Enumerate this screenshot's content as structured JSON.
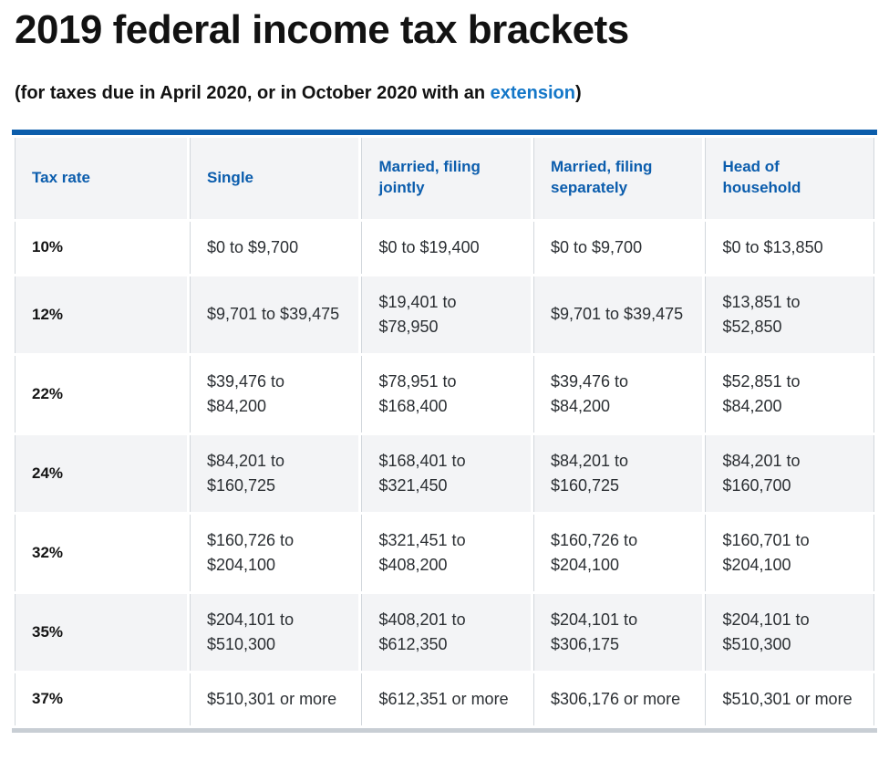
{
  "page": {
    "title": "2019 federal income tax brackets",
    "subtitle": {
      "prefix": "(for taxes due in April 2020, or in October 2020 with an ",
      "link": "extension",
      "suffix": ")"
    }
  },
  "colors": {
    "accent_bar_top": "#0c5dab",
    "accent_bar_bottom": "#c8ced4",
    "header_text_blue": "#0b5dad",
    "link_blue": "#1477c8",
    "alt_row_bg": "#f3f4f6",
    "cell_border": "#d2d7dc",
    "body_text": "#2b2f33"
  },
  "table": {
    "columns": [
      "Tax rate",
      "Single",
      "Married, filing jointly",
      "Married, filing separately",
      "Head of household"
    ],
    "rows": [
      [
        "10%",
        "$0 to $9,700",
        "$0 to $19,400",
        "$0 to $9,700",
        "$0 to $13,850"
      ],
      [
        "12%",
        "$9,701 to $39,475",
        "$19,401 to $78,950",
        "$9,701 to $39,475",
        "$13,851 to $52,850"
      ],
      [
        "22%",
        "$39,476 to $84,200",
        "$78,951 to $168,400",
        "$39,476 to $84,200",
        "$52,851 to $84,200"
      ],
      [
        "24%",
        "$84,201 to $160,725",
        "$168,401 to $321,450",
        "$84,201 to $160,725",
        "$84,201 to $160,700"
      ],
      [
        "32%",
        "$160,726 to $204,100",
        "$321,451 to $408,200",
        "$160,726 to $204,100",
        "$160,701 to $204,100"
      ],
      [
        "35%",
        "$204,101 to $510,300",
        "$408,201 to $612,350",
        "$204,101 to $306,175",
        "$204,101 to $510,300"
      ],
      [
        "37%",
        "$510,301 or more",
        "$612,351 or more",
        "$306,176 or more",
        "$510,301 or more"
      ]
    ]
  }
}
